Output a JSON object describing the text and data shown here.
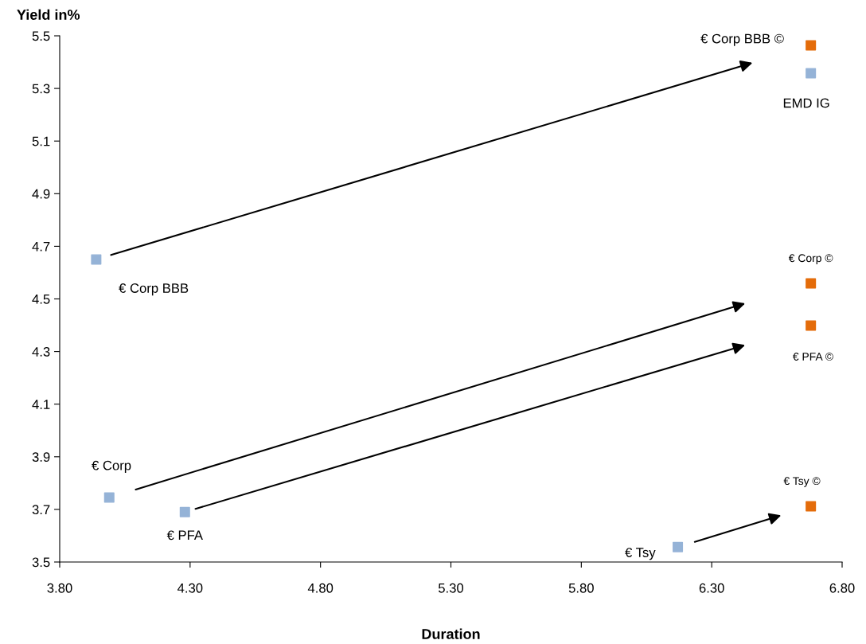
{
  "chart_data": {
    "type": "scatter",
    "xlabel": "Duration",
    "ylabel": "Yield in%",
    "series": [
      {
        "color": "#95b3d7",
        "x": [
          3.94,
          3.99,
          4.28,
          6.17,
          6.68
        ],
        "values": [
          4.65,
          3.745,
          3.69,
          3.557,
          5.358
        ]
      },
      {
        "color": "#e46c0a",
        "x": [
          6.68,
          6.68,
          6.68,
          6.68
        ],
        "values": [
          5.464,
          4.559,
          4.399,
          3.712
        ]
      }
    ],
    "annotations": [
      {
        "text": "€ Corp BBB",
        "x": 3.94,
        "y": 4.65
      },
      {
        "text": "€ Corp",
        "x": 3.99,
        "y": 3.745
      },
      {
        "text": "€ PFA",
        "x": 4.28,
        "y": 3.69
      },
      {
        "text": "€ Tsy",
        "x": 6.17,
        "y": 3.557
      },
      {
        "text": "EMD IG",
        "x": 6.68,
        "y": 5.358
      },
      {
        "text": "€ Corp BBB ©",
        "x": 6.68,
        "y": 5.464
      },
      {
        "text": "€ Corp ©",
        "x": 6.68,
        "y": 4.559
      },
      {
        "text": "€ PFA ©",
        "x": 6.68,
        "y": 4.399
      },
      {
        "text": "€ Tsy ©",
        "x": 6.68,
        "y": 3.712
      }
    ],
    "xlim": [
      3.8,
      6.8
    ],
    "xticks": [
      {
        "value": 3.8,
        "label": "3.80"
      },
      {
        "value": 4.3,
        "label": "4.30"
      },
      {
        "value": 4.8,
        "label": "4.80"
      },
      {
        "value": 5.3,
        "label": "5.30"
      },
      {
        "value": 5.8,
        "label": "5.80"
      },
      {
        "value": 6.3,
        "label": "6.30"
      },
      {
        "value": 6.8,
        "label": "6.80"
      }
    ],
    "ylim": [
      3.5,
      5.5
    ],
    "yticks": [
      3.5,
      3.7,
      3.9,
      4.1,
      4.3,
      4.5,
      4.7,
      4.9,
      5.1,
      5.3,
      5.5
    ],
    "marker": "square",
    "grid": false,
    "legend": false
  }
}
